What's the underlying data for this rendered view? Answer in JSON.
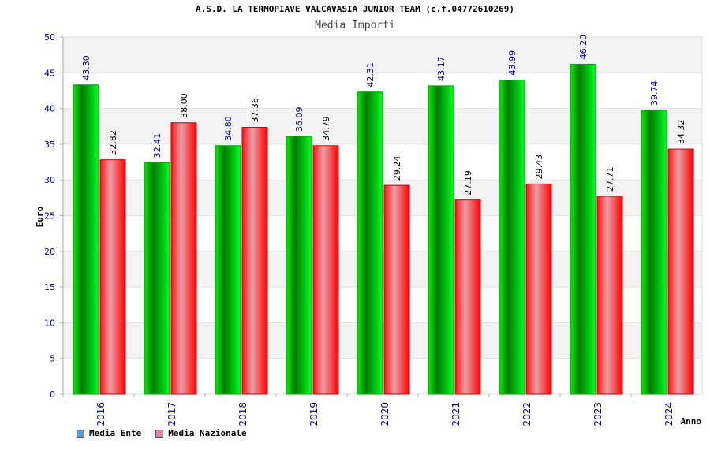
{
  "title": "A.S.D. LA TERMOPIAVE VALCAVASIA JUNIOR TEAM (c.f.04772610269)",
  "subtitle": "Media Importi",
  "legend": {
    "items": [
      {
        "label": "Media Ente",
        "color": "#5599dd"
      },
      {
        "label": "Media Nazionale",
        "color": "#dd88aa"
      }
    ]
  },
  "chart_data": {
    "type": "bar",
    "xlabel": "Anno",
    "ylabel": "Euro",
    "ylim": [
      0,
      50
    ],
    "yticks": [
      0,
      5,
      10,
      15,
      20,
      25,
      30,
      35,
      40,
      45,
      50
    ],
    "grid": true,
    "legend_position": "bottom-left",
    "categories": [
      "2016",
      "2017",
      "2018",
      "2019",
      "2020",
      "2021",
      "2022",
      "2023",
      "2024"
    ],
    "series": [
      {
        "name": "Media Ente",
        "color": "#00cc00",
        "values": [
          43.3,
          32.41,
          34.8,
          36.09,
          42.31,
          43.17,
          43.99,
          46.2,
          39.74
        ]
      },
      {
        "name": "Media Nazionale",
        "color": "#ee0000",
        "values": [
          32.82,
          38.0,
          37.36,
          34.79,
          29.24,
          27.19,
          29.43,
          27.71,
          34.32
        ]
      }
    ]
  }
}
